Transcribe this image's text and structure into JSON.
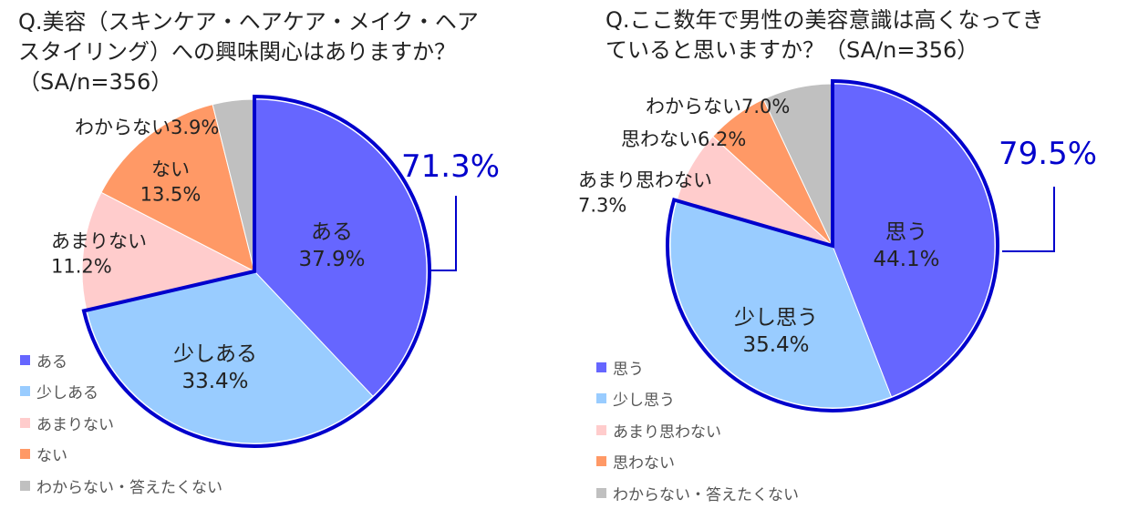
{
  "chart_data": [
    {
      "type": "pie",
      "title": "Q.美容（スキンケア・ヘアケア・メイク・ヘア\nスタイリング）への興味関心はありますか？\n（SA/n=356）",
      "slices": [
        {
          "label": "ある",
          "value": 37.9,
          "color": "#6666ff"
        },
        {
          "label": "少しある",
          "value": 33.4,
          "color": "#99ccff"
        },
        {
          "label": "あまりない",
          "value": 11.2,
          "color": "#ffcccc"
        },
        {
          "label": "ない",
          "value": 13.5,
          "color": "#ff9966"
        },
        {
          "label": "わからない",
          "value": 3.9,
          "color": "#c0c0c0"
        }
      ],
      "legend": [
        "ある",
        "少しある",
        "あまりない",
        "ない",
        "わからない・答えたくない"
      ],
      "legend_position": "bottom-left",
      "highlight": {
        "value": "71.3%",
        "color": "#0000cc"
      }
    },
    {
      "type": "pie",
      "title": "Q.ここ数年で男性の美容意識は高くなってき\nていると思いますか？（SA/n=356）",
      "slices": [
        {
          "label": "思う",
          "value": 44.1,
          "color": "#6666ff"
        },
        {
          "label": "少し思う",
          "value": 35.4,
          "color": "#99ccff"
        },
        {
          "label": "あまり思わない",
          "value": 7.3,
          "color": "#ffcccc"
        },
        {
          "label": "思わない",
          "value": 6.2,
          "color": "#ff9966"
        },
        {
          "label": "わからない",
          "value": 7.0,
          "color": "#c0c0c0"
        }
      ],
      "legend": [
        "思う",
        "少し思う",
        "あまり思わない",
        "思わない",
        "わからない・答えたくない"
      ],
      "legend_position": "bottom-left",
      "highlight": {
        "value": "79.5%",
        "color": "#0000cc"
      }
    }
  ]
}
